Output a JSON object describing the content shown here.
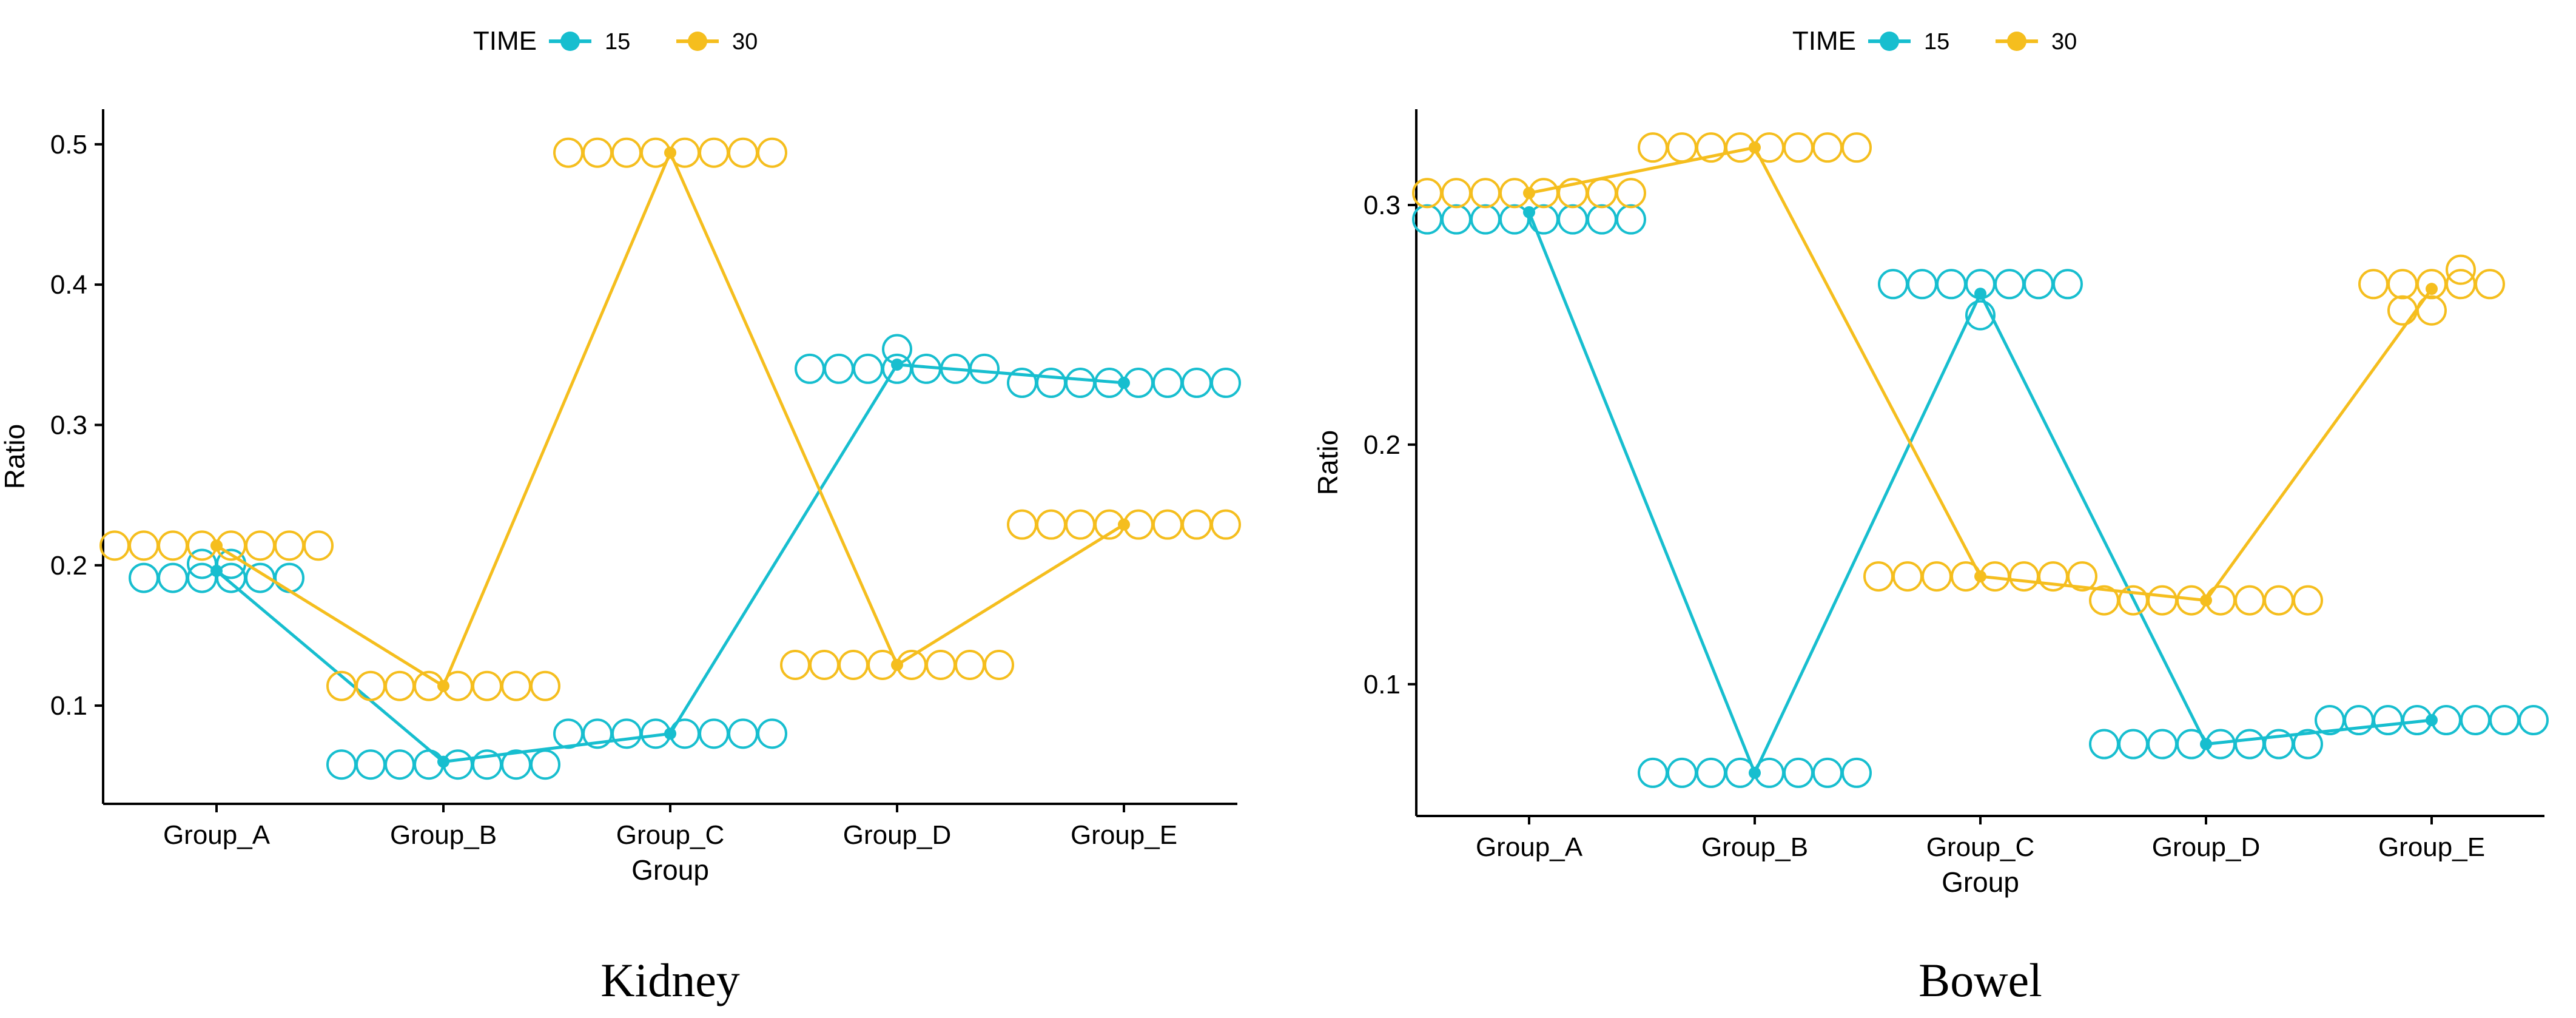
{
  "legend": {
    "title": "TIME",
    "entries": [
      {
        "label": "15",
        "color": "#17BECF"
      },
      {
        "label": "30",
        "color": "#F5BE1E"
      }
    ]
  },
  "chart_data": [
    {
      "type": "line",
      "caption": "Kidney",
      "xlabel": "Group",
      "ylabel": "Ratio",
      "categories": [
        "Group_A",
        "Group_B",
        "Group_C",
        "Group_D",
        "Group_E"
      ],
      "ylim": [
        0.03,
        0.525
      ],
      "yticks": [
        "0.1",
        "0.2",
        "0.3",
        "0.4",
        "0.5"
      ],
      "grid": false,
      "legend_position": "top",
      "series": [
        {
          "name": "15",
          "color": "#17BECF",
          "mean": [
            0.196,
            0.06,
            0.08,
            0.343,
            0.33
          ],
          "points": [
            [
              0.191,
              0.191,
              0.191,
              0.191,
              0.191,
              0.191,
              0.201,
              0.201
            ],
            [
              0.058,
              0.058,
              0.058,
              0.058,
              0.058,
              0.058,
              0.058,
              0.058
            ],
            [
              0.08,
              0.08,
              0.08,
              0.08,
              0.08,
              0.08,
              0.08,
              0.08
            ],
            [
              0.34,
              0.34,
              0.34,
              0.34,
              0.34,
              0.34,
              0.34,
              0.354
            ],
            [
              0.33,
              0.33,
              0.33,
              0.33,
              0.33,
              0.33,
              0.33,
              0.33
            ]
          ]
        },
        {
          "name": "30",
          "color": "#F5BE1E",
          "mean": [
            0.214,
            0.114,
            0.494,
            0.129,
            0.229
          ],
          "points": [
            [
              0.214,
              0.214,
              0.214,
              0.214,
              0.214,
              0.214,
              0.214,
              0.214
            ],
            [
              0.114,
              0.114,
              0.114,
              0.114,
              0.114,
              0.114,
              0.114,
              0.114
            ],
            [
              0.494,
              0.494,
              0.494,
              0.494,
              0.494,
              0.494,
              0.494,
              0.494
            ],
            [
              0.129,
              0.129,
              0.129,
              0.129,
              0.129,
              0.129,
              0.129,
              0.129
            ],
            [
              0.229,
              0.229,
              0.229,
              0.229,
              0.229,
              0.229,
              0.229,
              0.229
            ]
          ]
        }
      ]
    },
    {
      "type": "line",
      "caption": "Bowel",
      "xlabel": "Group",
      "ylabel": "Ratio",
      "categories": [
        "Group_A",
        "Group_B",
        "Group_C",
        "Group_D",
        "Group_E"
      ],
      "ylim": [
        0.045,
        0.34
      ],
      "yticks": [
        "0.1",
        "0.2",
        "0.3"
      ],
      "grid": false,
      "legend_position": "top",
      "series": [
        {
          "name": "15",
          "color": "#17BECF",
          "mean": [
            0.297,
            0.063,
            0.263,
            0.075,
            0.085
          ],
          "points": [
            [
              0.294,
              0.294,
              0.294,
              0.294,
              0.294,
              0.294,
              0.294,
              0.294
            ],
            [
              0.063,
              0.063,
              0.063,
              0.063,
              0.063,
              0.063,
              0.063,
              0.063
            ],
            [
              0.267,
              0.267,
              0.267,
              0.267,
              0.267,
              0.267,
              0.267,
              0.254
            ],
            [
              0.075,
              0.075,
              0.075,
              0.075,
              0.075,
              0.075,
              0.075,
              0.075
            ],
            [
              0.085,
              0.085,
              0.085,
              0.085,
              0.085,
              0.085,
              0.085,
              0.085
            ]
          ]
        },
        {
          "name": "30",
          "color": "#F5BE1E",
          "mean": [
            0.305,
            0.324,
            0.145,
            0.135,
            0.265
          ],
          "points": [
            [
              0.305,
              0.305,
              0.305,
              0.305,
              0.305,
              0.305,
              0.305,
              0.305
            ],
            [
              0.324,
              0.324,
              0.324,
              0.324,
              0.324,
              0.324,
              0.324,
              0.324
            ],
            [
              0.145,
              0.145,
              0.145,
              0.145,
              0.145,
              0.145,
              0.145,
              0.145
            ],
            [
              0.135,
              0.135,
              0.135,
              0.135,
              0.135,
              0.135,
              0.135,
              0.135
            ],
            [
              0.267,
              0.267,
              0.267,
              0.267,
              0.267,
              0.256,
              0.256,
              0.273
            ]
          ]
        }
      ]
    }
  ]
}
